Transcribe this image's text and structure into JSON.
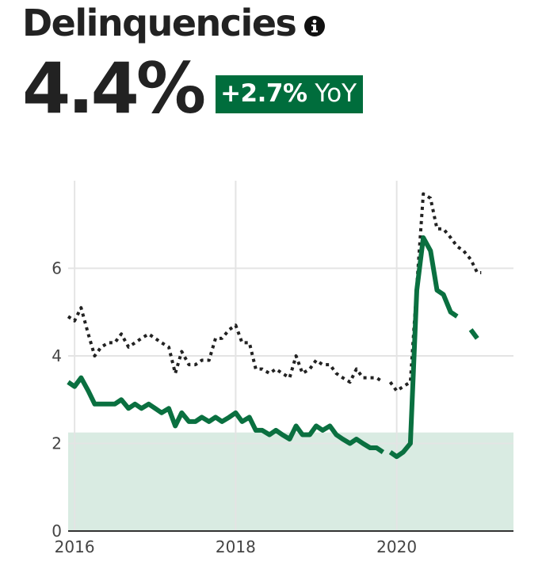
{
  "header": {
    "title": "Delinquencies",
    "info_icon": "info-circle-icon",
    "kpi_value": "4.4%",
    "badge_change": "+2.7%",
    "badge_unit": "YoY"
  },
  "colors": {
    "badge_bg": "#006d3c",
    "series_primary": "#0a7040",
    "series_secondary": "#222222",
    "band_fill": "#d9ebe2",
    "grid": "#e4e4e4",
    "axis": "#333333"
  },
  "chart_data": {
    "type": "line",
    "title": "",
    "xlabel": "",
    "ylabel": "",
    "xlim": [
      2015.92,
      2021.45
    ],
    "ylim": [
      0,
      8
    ],
    "x_ticks": [
      "2016",
      "2018",
      "2020"
    ],
    "y_ticks": [
      "0",
      "2",
      "4",
      "6"
    ],
    "grid": true,
    "shaded_band": {
      "y_from": 0,
      "y_to": 2.25
    },
    "series": [
      {
        "style": "solid",
        "color": "#0a7040",
        "points": [
          [
            2015.92,
            3.4
          ],
          [
            2016.0,
            3.3
          ],
          [
            2016.08,
            3.5
          ],
          [
            2016.17,
            3.2
          ],
          [
            2016.25,
            2.9
          ],
          [
            2016.33,
            2.9
          ],
          [
            2016.42,
            2.9
          ],
          [
            2016.5,
            2.9
          ],
          [
            2016.58,
            3.0
          ],
          [
            2016.67,
            2.8
          ],
          [
            2016.75,
            2.9
          ],
          [
            2016.83,
            2.8
          ],
          [
            2016.92,
            2.9
          ],
          [
            2017.0,
            2.8
          ],
          [
            2017.08,
            2.7
          ],
          [
            2017.17,
            2.8
          ],
          [
            2017.25,
            2.4
          ],
          [
            2017.33,
            2.7
          ],
          [
            2017.42,
            2.5
          ],
          [
            2017.5,
            2.5
          ],
          [
            2017.58,
            2.6
          ],
          [
            2017.67,
            2.5
          ],
          [
            2017.75,
            2.6
          ],
          [
            2017.83,
            2.5
          ],
          [
            2017.92,
            2.6
          ],
          [
            2018.0,
            2.7
          ],
          [
            2018.08,
            2.5
          ],
          [
            2018.17,
            2.6
          ],
          [
            2018.25,
            2.3
          ],
          [
            2018.33,
            2.3
          ],
          [
            2018.42,
            2.2
          ],
          [
            2018.5,
            2.3
          ],
          [
            2018.58,
            2.2
          ],
          [
            2018.67,
            2.1
          ],
          [
            2018.75,
            2.4
          ],
          [
            2018.83,
            2.2
          ],
          [
            2018.92,
            2.2
          ],
          [
            2019.0,
            2.4
          ],
          [
            2019.08,
            2.3
          ],
          [
            2019.17,
            2.4
          ],
          [
            2019.25,
            2.2
          ],
          [
            2019.33,
            2.1
          ],
          [
            2019.42,
            2.0
          ],
          [
            2019.5,
            2.1
          ],
          [
            2019.58,
            2.0
          ],
          [
            2019.67,
            1.9
          ],
          [
            2019.75,
            1.9
          ],
          [
            2019.83,
            1.8
          ],
          null,
          [
            2019.92,
            1.8
          ],
          [
            2020.0,
            1.7
          ],
          [
            2020.08,
            1.8
          ],
          [
            2020.17,
            2.0
          ],
          [
            2020.25,
            5.5
          ],
          [
            2020.33,
            6.7
          ],
          [
            2020.42,
            6.4
          ],
          [
            2020.5,
            5.5
          ],
          [
            2020.58,
            5.4
          ],
          [
            2020.67,
            5.0
          ],
          [
            2020.75,
            4.9
          ],
          null,
          [
            2020.92,
            4.6
          ],
          [
            2021.0,
            4.4
          ]
        ]
      },
      {
        "style": "dotted",
        "color": "#222222",
        "points": [
          [
            2015.92,
            4.9
          ],
          [
            2016.0,
            4.8
          ],
          [
            2016.08,
            5.1
          ],
          [
            2016.17,
            4.5
          ],
          [
            2016.25,
            4.0
          ],
          [
            2016.33,
            4.2
          ],
          [
            2016.42,
            4.3
          ],
          [
            2016.5,
            4.3
          ],
          [
            2016.58,
            4.5
          ],
          [
            2016.67,
            4.2
          ],
          [
            2016.75,
            4.3
          ],
          [
            2016.83,
            4.4
          ],
          [
            2016.92,
            4.5
          ],
          [
            2017.0,
            4.4
          ],
          [
            2017.08,
            4.3
          ],
          [
            2017.17,
            4.2
          ],
          [
            2017.25,
            3.6
          ],
          [
            2017.33,
            4.1
          ],
          [
            2017.42,
            3.8
          ],
          [
            2017.5,
            3.8
          ],
          [
            2017.58,
            3.9
          ],
          [
            2017.67,
            3.9
          ],
          [
            2017.75,
            4.4
          ],
          [
            2017.83,
            4.4
          ],
          [
            2017.92,
            4.6
          ],
          [
            2018.0,
            4.7
          ],
          [
            2018.08,
            4.3
          ],
          [
            2018.17,
            4.3
          ],
          [
            2018.25,
            3.7
          ],
          [
            2018.33,
            3.7
          ],
          [
            2018.42,
            3.6
          ],
          [
            2018.5,
            3.7
          ],
          [
            2018.58,
            3.6
          ],
          [
            2018.67,
            3.5
          ],
          [
            2018.75,
            4.0
          ],
          [
            2018.83,
            3.6
          ],
          [
            2018.92,
            3.7
          ],
          [
            2019.0,
            3.9
          ],
          [
            2019.08,
            3.8
          ],
          [
            2019.17,
            3.8
          ],
          [
            2019.25,
            3.6
          ],
          [
            2019.33,
            3.5
          ],
          [
            2019.42,
            3.4
          ],
          [
            2019.5,
            3.7
          ],
          [
            2019.58,
            3.5
          ],
          [
            2019.67,
            3.5
          ],
          [
            2019.75,
            3.5
          ],
          [
            2019.83,
            3.4
          ],
          null,
          [
            2019.92,
            3.4
          ],
          [
            2020.0,
            3.2
          ],
          [
            2020.08,
            3.3
          ],
          [
            2020.17,
            3.4
          ],
          [
            2020.25,
            5.6
          ],
          [
            2020.33,
            7.7
          ],
          [
            2020.42,
            7.6
          ],
          [
            2020.5,
            6.9
          ],
          [
            2020.58,
            6.9
          ],
          [
            2020.67,
            6.7
          ],
          [
            2020.75,
            6.5
          ],
          [
            2020.83,
            6.4
          ],
          [
            2020.92,
            6.2
          ],
          [
            2021.0,
            5.9
          ],
          [
            2021.05,
            5.9
          ]
        ]
      }
    ]
  }
}
